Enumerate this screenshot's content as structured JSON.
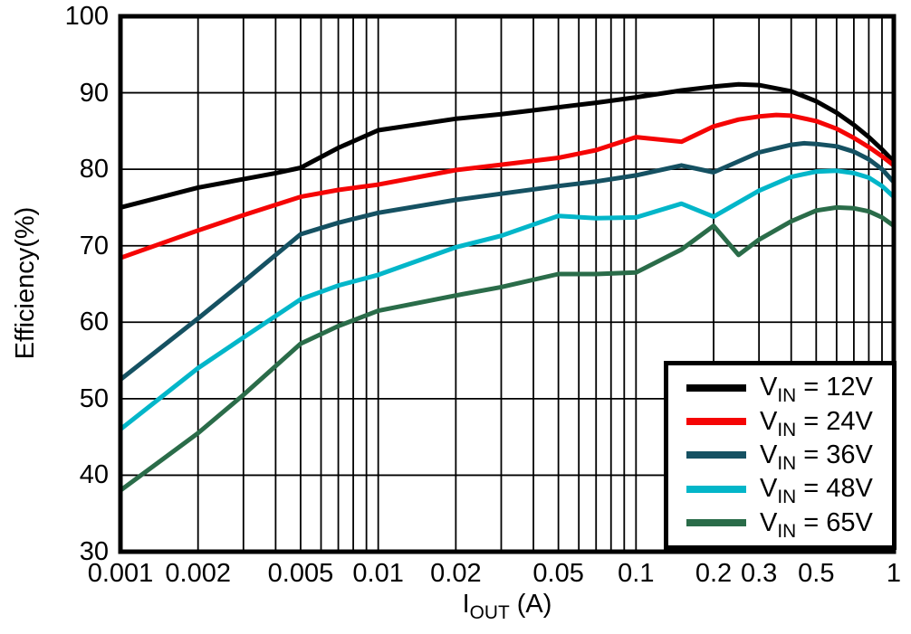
{
  "chart_data": {
    "type": "line",
    "title": "",
    "xlabel": "IOUT (A)",
    "xlabel_parts": {
      "base": "I",
      "sub": "OUT",
      "rest": " (A)"
    },
    "ylabel": "Efficiency(%)",
    "x_scale": "log",
    "xlim": [
      0.001,
      1
    ],
    "ylim": [
      30,
      100
    ],
    "grid": {
      "x_minor_log": true,
      "y_major_step": 10,
      "color": "#000000"
    },
    "background": "#ffffff",
    "axis_color": "#000000",
    "legend_position": "bottom-right",
    "x_ticks": [
      {
        "value": 0.001,
        "label": "0.001"
      },
      {
        "value": 0.002,
        "label": "0.002"
      },
      {
        "value": 0.005,
        "label": "0.005"
      },
      {
        "value": 0.01,
        "label": "0.01"
      },
      {
        "value": 0.02,
        "label": "0.02"
      },
      {
        "value": 0.05,
        "label": "0.05"
      },
      {
        "value": 0.1,
        "label": "0.1"
      },
      {
        "value": 0.2,
        "label": "0.2"
      },
      {
        "value": 0.3,
        "label": "0.3"
      },
      {
        "value": 0.5,
        "label": "0.5"
      },
      {
        "value": 1,
        "label": "1"
      }
    ],
    "y_ticks": [
      {
        "value": 100,
        "label": "100"
      },
      {
        "value": 90,
        "label": "90"
      },
      {
        "value": 80,
        "label": "80"
      },
      {
        "value": 70,
        "label": "70"
      },
      {
        "value": 60,
        "label": "60"
      },
      {
        "value": 50,
        "label": "50"
      },
      {
        "value": 40,
        "label": "40"
      },
      {
        "value": 30,
        "label": "30"
      }
    ],
    "series": [
      {
        "name": "VIN = 12V",
        "legend": {
          "base": "V",
          "sub": "IN",
          "rest": " = 12V"
        },
        "color": "#000000",
        "points": [
          [
            0.001,
            75.0
          ],
          [
            0.002,
            77.6
          ],
          [
            0.003,
            78.7
          ],
          [
            0.004,
            79.5
          ],
          [
            0.005,
            80.2
          ],
          [
            0.007,
            82.8
          ],
          [
            0.01,
            85.1
          ],
          [
            0.02,
            86.6
          ],
          [
            0.03,
            87.2
          ],
          [
            0.05,
            88.1
          ],
          [
            0.07,
            88.7
          ],
          [
            0.1,
            89.4
          ],
          [
            0.15,
            90.3
          ],
          [
            0.2,
            90.8
          ],
          [
            0.25,
            91.1
          ],
          [
            0.3,
            91.0
          ],
          [
            0.4,
            90.2
          ],
          [
            0.5,
            88.9
          ],
          [
            0.6,
            87.4
          ],
          [
            0.7,
            85.8
          ],
          [
            0.8,
            84.2
          ],
          [
            0.9,
            82.6
          ],
          [
            1,
            81.0
          ]
        ]
      },
      {
        "name": "VIN = 24V",
        "legend": {
          "base": "V",
          "sub": "IN",
          "rest": " = 24V"
        },
        "color": "#F50505",
        "points": [
          [
            0.001,
            68.4
          ],
          [
            0.002,
            72.0
          ],
          [
            0.003,
            74.0
          ],
          [
            0.005,
            76.4
          ],
          [
            0.007,
            77.3
          ],
          [
            0.01,
            78.0
          ],
          [
            0.02,
            79.9
          ],
          [
            0.03,
            80.6
          ],
          [
            0.05,
            81.5
          ],
          [
            0.07,
            82.5
          ],
          [
            0.1,
            84.2
          ],
          [
            0.15,
            83.6
          ],
          [
            0.2,
            85.6
          ],
          [
            0.25,
            86.5
          ],
          [
            0.3,
            86.9
          ],
          [
            0.35,
            87.1
          ],
          [
            0.4,
            87.0
          ],
          [
            0.5,
            86.3
          ],
          [
            0.6,
            85.3
          ],
          [
            0.7,
            84.1
          ],
          [
            0.8,
            82.9
          ],
          [
            0.9,
            81.7
          ],
          [
            1,
            80.5
          ]
        ]
      },
      {
        "name": "VIN = 36V",
        "legend": {
          "base": "V",
          "sub": "IN",
          "rest": " = 36V"
        },
        "color": "#155162",
        "points": [
          [
            0.001,
            52.5
          ],
          [
            0.002,
            60.5
          ],
          [
            0.003,
            65.3
          ],
          [
            0.005,
            71.5
          ],
          [
            0.007,
            73.0
          ],
          [
            0.01,
            74.3
          ],
          [
            0.02,
            76.0
          ],
          [
            0.03,
            76.8
          ],
          [
            0.05,
            77.8
          ],
          [
            0.07,
            78.4
          ],
          [
            0.1,
            79.2
          ],
          [
            0.15,
            80.5
          ],
          [
            0.2,
            79.6
          ],
          [
            0.3,
            82.2
          ],
          [
            0.4,
            83.2
          ],
          [
            0.45,
            83.4
          ],
          [
            0.5,
            83.3
          ],
          [
            0.6,
            83.0
          ],
          [
            0.7,
            82.3
          ],
          [
            0.8,
            81.3
          ],
          [
            0.9,
            80.0
          ],
          [
            1,
            78.3
          ]
        ]
      },
      {
        "name": "VIN = 48V",
        "legend": {
          "base": "V",
          "sub": "IN",
          "rest": " = 48V"
        },
        "color": "#03B6C9",
        "points": [
          [
            0.001,
            46.0
          ],
          [
            0.002,
            54.0
          ],
          [
            0.003,
            58.0
          ],
          [
            0.005,
            63.0
          ],
          [
            0.007,
            64.8
          ],
          [
            0.01,
            66.2
          ],
          [
            0.02,
            69.8
          ],
          [
            0.03,
            71.3
          ],
          [
            0.05,
            73.9
          ],
          [
            0.07,
            73.6
          ],
          [
            0.1,
            73.7
          ],
          [
            0.15,
            75.5
          ],
          [
            0.2,
            73.8
          ],
          [
            0.3,
            77.2
          ],
          [
            0.4,
            79.0
          ],
          [
            0.5,
            79.7
          ],
          [
            0.6,
            79.8
          ],
          [
            0.7,
            79.5
          ],
          [
            0.8,
            78.9
          ],
          [
            0.9,
            77.8
          ],
          [
            1,
            76.4
          ]
        ]
      },
      {
        "name": "VIN = 65V",
        "legend": {
          "base": "V",
          "sub": "IN",
          "rest": " = 65V"
        },
        "color": "#2A6C49",
        "points": [
          [
            0.001,
            38.0
          ],
          [
            0.002,
            45.5
          ],
          [
            0.003,
            50.5
          ],
          [
            0.005,
            57.2
          ],
          [
            0.007,
            59.5
          ],
          [
            0.01,
            61.5
          ],
          [
            0.02,
            63.5
          ],
          [
            0.03,
            64.6
          ],
          [
            0.05,
            66.3
          ],
          [
            0.07,
            66.3
          ],
          [
            0.1,
            66.5
          ],
          [
            0.15,
            69.5
          ],
          [
            0.2,
            72.6
          ],
          [
            0.25,
            68.8
          ],
          [
            0.3,
            70.8
          ],
          [
            0.4,
            73.2
          ],
          [
            0.5,
            74.6
          ],
          [
            0.6,
            75.0
          ],
          [
            0.7,
            74.9
          ],
          [
            0.8,
            74.5
          ],
          [
            0.9,
            73.7
          ],
          [
            1,
            72.6
          ]
        ]
      }
    ]
  }
}
